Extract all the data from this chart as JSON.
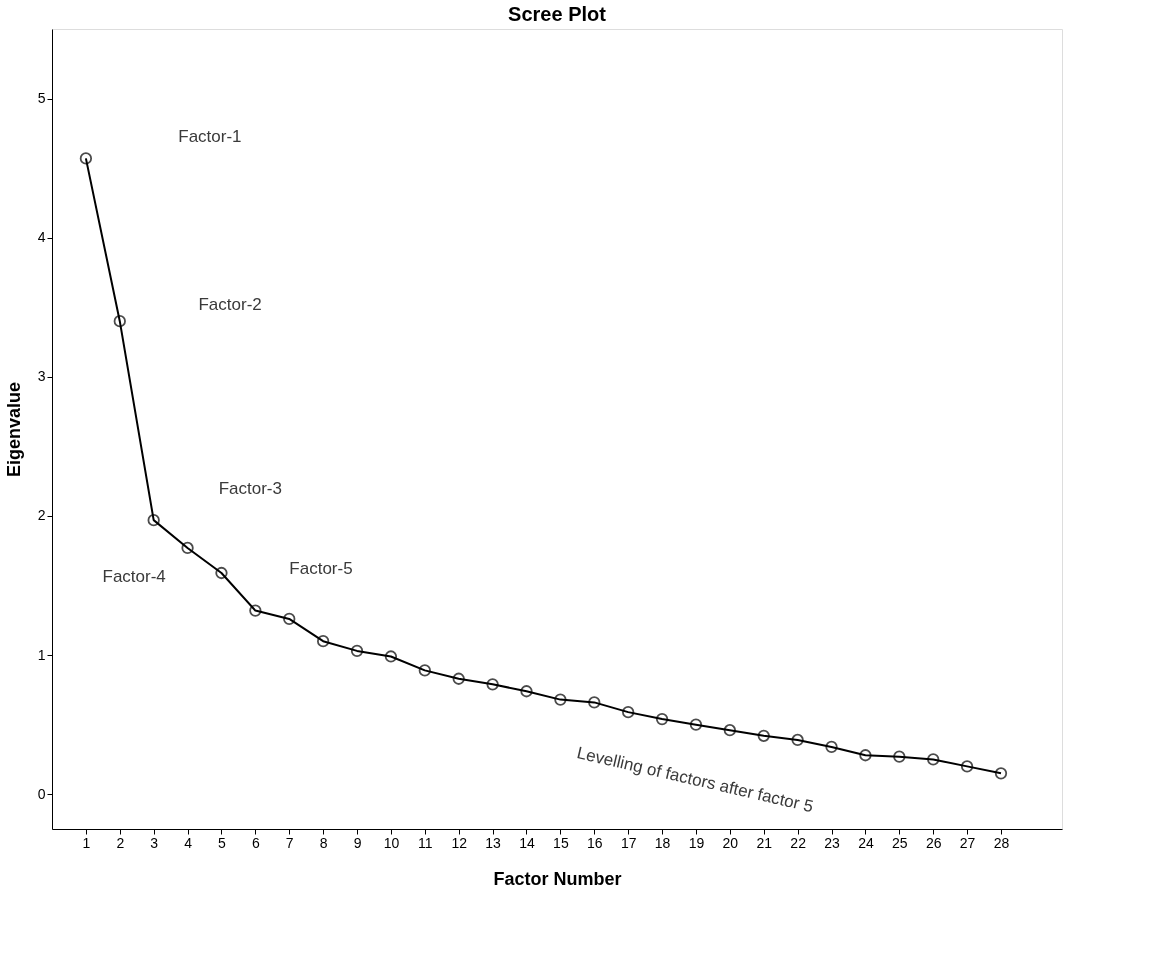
{
  "chart_data": {
    "type": "line",
    "title": "Scree Plot",
    "xlabel": "Factor Number",
    "ylabel": "Eigenvalue",
    "x": [
      1,
      2,
      3,
      4,
      5,
      6,
      7,
      8,
      9,
      10,
      11,
      12,
      13,
      14,
      15,
      16,
      17,
      18,
      19,
      20,
      21,
      22,
      23,
      24,
      25,
      26,
      27,
      28
    ],
    "series": [
      {
        "color": "#000000",
        "values": [
          4.57,
          3.4,
          1.97,
          1.77,
          1.59,
          1.32,
          1.26,
          1.1,
          1.03,
          0.99,
          0.89,
          0.83,
          0.79,
          0.74,
          0.68,
          0.66,
          0.59,
          0.54,
          0.5,
          0.46,
          0.42,
          0.39,
          0.34,
          0.28,
          0.27,
          0.25,
          0.2,
          0.15
        ]
      }
    ],
    "xlim": [
      0,
      29.8
    ],
    "ylim": [
      -0.25,
      5.5
    ],
    "xticks": [
      1,
      2,
      3,
      4,
      5,
      6,
      7,
      8,
      9,
      10,
      11,
      12,
      13,
      14,
      15,
      16,
      17,
      18,
      19,
      20,
      21,
      22,
      23,
      24,
      25,
      26,
      27,
      28
    ],
    "yticks": [
      {
        "value": 0,
        "label": "0"
      },
      {
        "value": 1,
        "label": "1"
      },
      {
        "value": 2,
        "label": "2"
      },
      {
        "value": 3,
        "label": "3"
      },
      {
        "value": 4,
        "label": "4"
      },
      {
        "value": 5,
        "label": "5"
      }
    ],
    "marker": "circle",
    "line_style": "solid",
    "grid": false,
    "annotations": [
      "Factor-1",
      "Factor-2",
      "Factor-3",
      "Factor-4",
      "Factor-5",
      "Levelling of factors after factor 5"
    ]
  }
}
